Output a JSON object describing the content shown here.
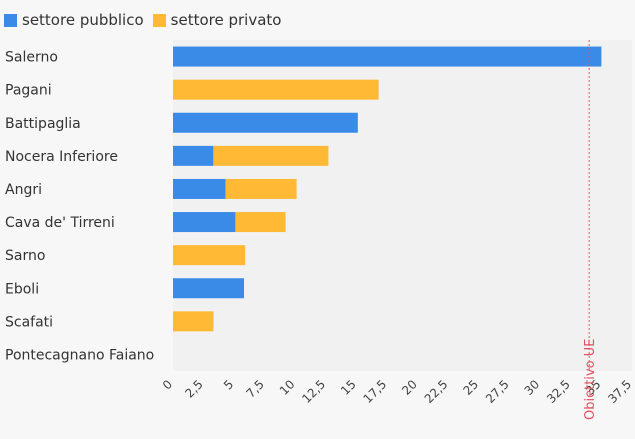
{
  "chart_data": {
    "type": "bar",
    "orientation": "horizontal",
    "stacked": true,
    "categories": [
      "Salerno",
      "Pagani",
      "Battipaglia",
      "Nocera Inferiore",
      "Angri",
      "Cava de' Tirreni",
      "Sarno",
      "Eboli",
      "Scafati",
      "Pontecagnano Faiano"
    ],
    "series": [
      {
        "name": "settore pubblico",
        "color": "#3a8ae8",
        "values": [
          35.0,
          0,
          15.1,
          3.3,
          4.3,
          5.1,
          0,
          5.8,
          0,
          0
        ]
      },
      {
        "name": "settore privato",
        "color": "#ffb935",
        "values": [
          0,
          16.8,
          0,
          9.4,
          5.8,
          4.1,
          5.9,
          0,
          3.3,
          0
        ]
      }
    ],
    "x_ticks": [
      "0",
      "2,5",
      "5",
      "7,5",
      "10",
      "12,5",
      "15",
      "17,5",
      "20",
      "22,5",
      "25",
      "27,5",
      "30",
      "32,5",
      "35",
      "37,5"
    ],
    "xlim": [
      0,
      37.5
    ],
    "target": {
      "label": "Obiettivo UE",
      "value": 34,
      "color": "#e05060"
    },
    "legend_position": "top-left"
  }
}
